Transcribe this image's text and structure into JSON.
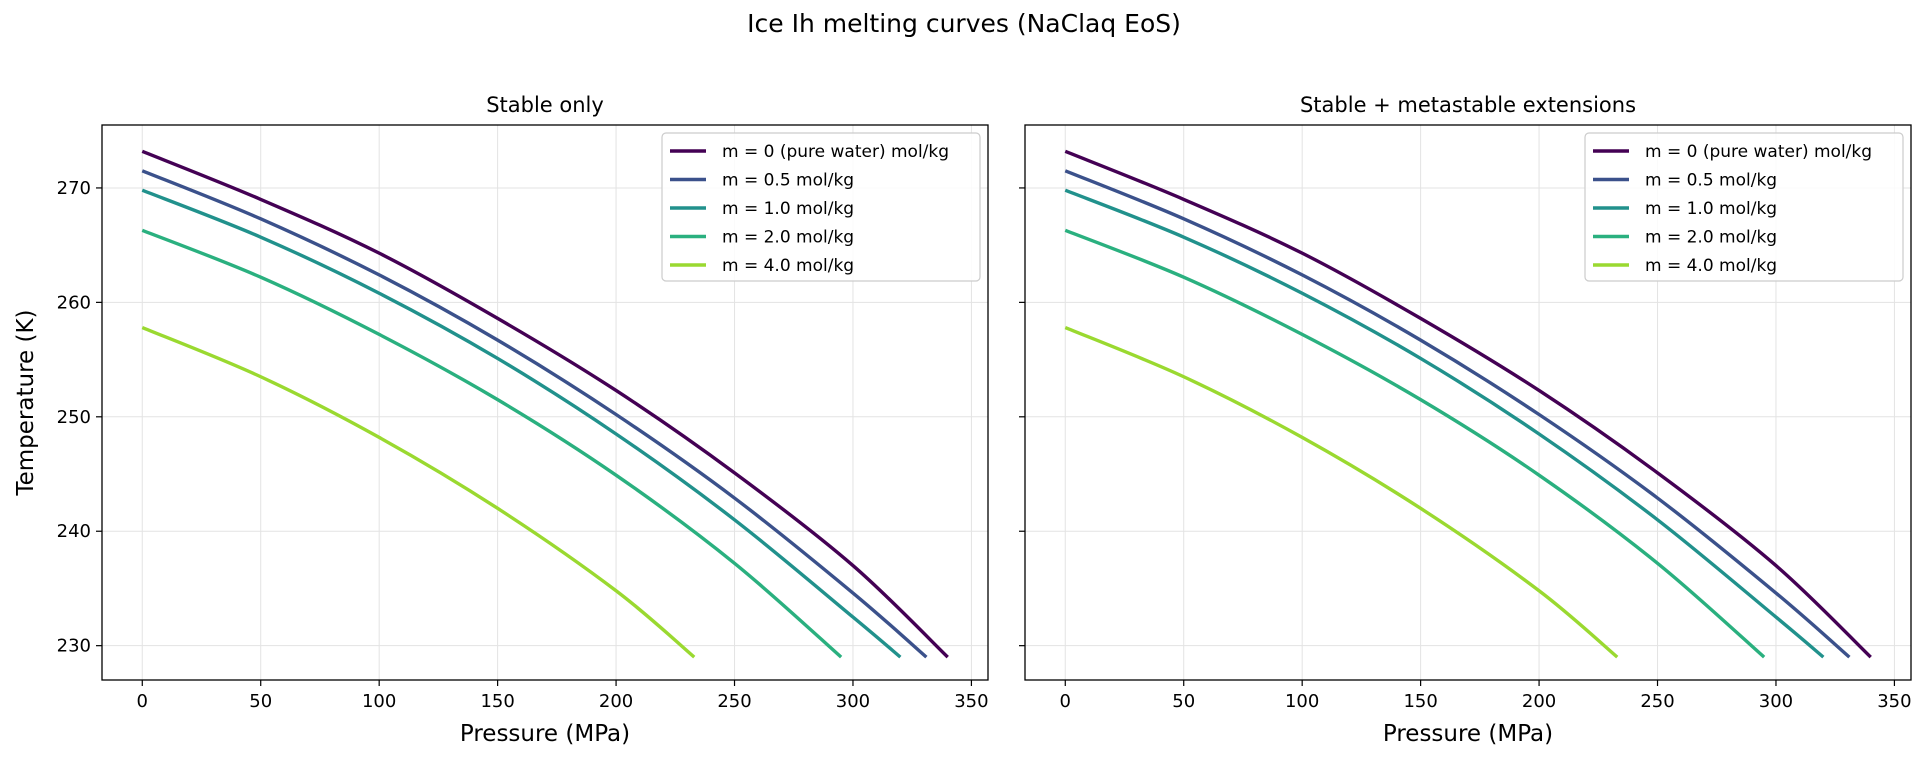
{
  "suptitle": "Ice Ih melting curves (NaClaq EoS)",
  "colors": {
    "m0": "#440154",
    "m05": "#3b518b",
    "m1": "#21918c",
    "m2": "#2ab07f",
    "m4": "#9ad930",
    "grid": "#e3e3e3"
  },
  "chart_data": [
    {
      "type": "line",
      "title": "Stable only",
      "xlabel": "Pressure (MPa)",
      "ylabel": "Temperature (K)",
      "xlim": [
        -17,
        357
      ],
      "ylim": [
        227,
        275.5
      ],
      "xticks": [
        0,
        50,
        100,
        150,
        200,
        250,
        300,
        350
      ],
      "yticks": [
        230,
        240,
        250,
        260,
        270
      ],
      "grid": true,
      "legend": "top-right",
      "series": [
        {
          "name": "m = 0 (pure water) mol/kg",
          "color_key": "m0",
          "x": [
            0,
            50,
            100,
            150,
            200,
            250,
            300,
            340
          ],
          "y": [
            273.2,
            269.0,
            264.3,
            258.6,
            252.3,
            245.1,
            237.0,
            229.0
          ]
        },
        {
          "name": "m = 0.5 mol/kg",
          "color_key": "m05",
          "x": [
            0,
            50,
            100,
            150,
            200,
            250,
            300,
            331
          ],
          "y": [
            271.5,
            267.3,
            262.4,
            256.7,
            250.2,
            242.9,
            234.6,
            229.0
          ]
        },
        {
          "name": "m = 1.0 mol/kg",
          "color_key": "m1",
          "x": [
            0,
            50,
            100,
            150,
            200,
            250,
            300,
            320
          ],
          "y": [
            269.8,
            265.7,
            260.8,
            255.1,
            248.5,
            241.0,
            232.5,
            229.0
          ]
        },
        {
          "name": "m = 2.0 mol/kg",
          "color_key": "m2",
          "x": [
            0,
            50,
            100,
            150,
            200,
            250,
            295
          ],
          "y": [
            266.3,
            262.2,
            257.2,
            251.5,
            244.9,
            237.2,
            229.0
          ]
        },
        {
          "name": "m = 4.0 mol/kg",
          "color_key": "m4",
          "x": [
            0,
            50,
            100,
            150,
            200,
            233
          ],
          "y": [
            257.8,
            253.5,
            248.2,
            242.0,
            234.8,
            229.0
          ]
        }
      ]
    },
    {
      "type": "line",
      "title": "Stable + metastable extensions",
      "xlabel": "Pressure (MPa)",
      "ylabel": "",
      "xlim": [
        -17,
        357
      ],
      "ylim": [
        227,
        275.5
      ],
      "xticks": [
        0,
        50,
        100,
        150,
        200,
        250,
        300,
        350
      ],
      "yticks": [
        230,
        240,
        250,
        260,
        270
      ],
      "grid": true,
      "legend": "top-right",
      "series": [
        {
          "name": "m = 0 (pure water) mol/kg",
          "color_key": "m0",
          "x": [
            0,
            50,
            100,
            150,
            200,
            250,
            300,
            340
          ],
          "y": [
            273.2,
            269.0,
            264.3,
            258.6,
            252.3,
            245.1,
            237.0,
            229.0
          ]
        },
        {
          "name": "m = 0.5 mol/kg",
          "color_key": "m05",
          "x": [
            0,
            50,
            100,
            150,
            200,
            250,
            300,
            331
          ],
          "y": [
            271.5,
            267.3,
            262.4,
            256.7,
            250.2,
            242.9,
            234.6,
            229.0
          ]
        },
        {
          "name": "m = 1.0 mol/kg",
          "color_key": "m1",
          "x": [
            0,
            50,
            100,
            150,
            200,
            250,
            300,
            320
          ],
          "y": [
            269.8,
            265.7,
            260.8,
            255.1,
            248.5,
            241.0,
            232.5,
            229.0
          ]
        },
        {
          "name": "m = 2.0 mol/kg",
          "color_key": "m2",
          "x": [
            0,
            50,
            100,
            150,
            200,
            250,
            295
          ],
          "y": [
            266.3,
            262.2,
            257.2,
            251.5,
            244.9,
            237.2,
            229.0
          ]
        },
        {
          "name": "m = 4.0 mol/kg",
          "color_key": "m4",
          "x": [
            0,
            50,
            100,
            150,
            200,
            233
          ],
          "y": [
            257.8,
            253.5,
            248.2,
            242.0,
            234.8,
            229.0
          ]
        }
      ]
    }
  ]
}
